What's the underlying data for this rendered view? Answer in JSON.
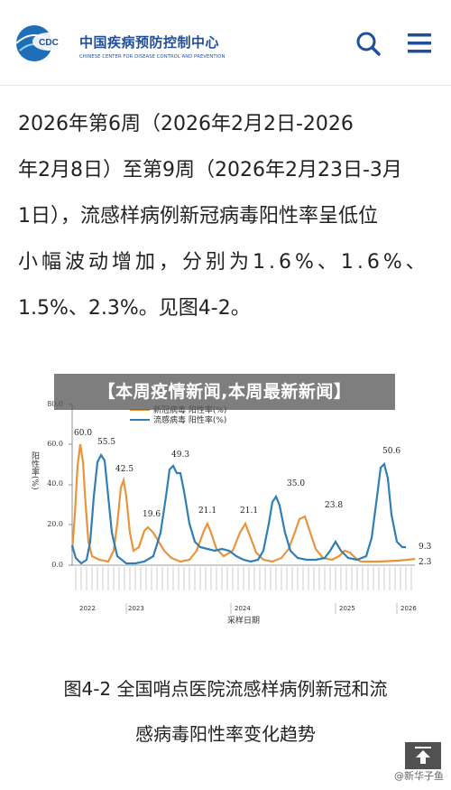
{
  "header": {
    "logo_badge": "CDC",
    "site_name": "中国疾病预防控制中心",
    "site_name_en": "CHINESE CENTER FOR DISEASE CONTROL AND PREVENTION",
    "icons": [
      "search-icon",
      "menu-icon"
    ]
  },
  "article": {
    "lines": [
      "2026年第6周（2026年2月2日-2026",
      "年2月8日）至第9周（2026年2月23日-3月",
      "1日），流感样病例新冠病毒阳性率呈低位",
      "小幅波动增加，分别为1.6%、1.6%、",
      "1.5%、2.3%。见图4-2。"
    ]
  },
  "banner": {
    "text": "【本周疫情新闻,本周最新新闻】"
  },
  "chart_data": {
    "type": "line",
    "ylabel": "阳性率(%)",
    "xlabel": "采样日期",
    "ylim": [
      0,
      80
    ],
    "yticks": [
      "0.0",
      "20.0",
      "40.0",
      "60.0",
      "80.0"
    ],
    "years": [
      "2022",
      "2023",
      "2024",
      "2025",
      "2026"
    ],
    "series": [
      {
        "name": "新冠病毒 阳性率(%)",
        "color": "#e8943a"
      },
      {
        "name": "流感病毒 阳性率(%)",
        "color": "#2f7fb5"
      }
    ],
    "annotations": [
      "60.0",
      "55.5",
      "42.5",
      "19.6",
      "49.3",
      "21.1",
      "21.1",
      "35.0",
      "23.8",
      "50.6",
      "9.3",
      "2.3"
    ]
  },
  "caption": {
    "line1": "图4-2 全国哨点医院流感样病例新冠和流",
    "line2": "感病毒阳性率变化趋势"
  },
  "watermark": "@新华子鱼"
}
